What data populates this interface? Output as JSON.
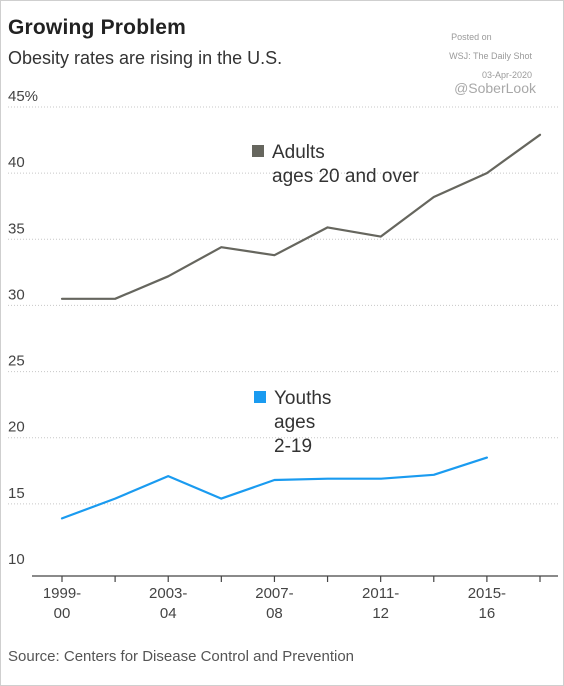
{
  "header": {
    "title": "Growing Problem",
    "subtitle": "Obesity rates are rising in the U.S."
  },
  "watermark": {
    "posted_line1": "Posted on",
    "posted_line2": "WSJ: The Daily Shot",
    "posted_line3": "03-Apr-2020",
    "handle": "@SoberLook"
  },
  "footer": {
    "source": "Source: Centers for Disease Control and Prevention"
  },
  "chart_data": {
    "type": "line",
    "title": "Growing Problem",
    "subtitle": "Obesity rates are rising in the U.S.",
    "y_tick_labels": [
      "45%",
      "40",
      "35",
      "30",
      "25",
      "20",
      "15",
      "10"
    ],
    "y_ticks": [
      45,
      40,
      35,
      30,
      25,
      20,
      15,
      10
    ],
    "ylim": [
      10,
      45
    ],
    "x_tick_labels": [
      {
        "line1": "1999-",
        "line2": "00"
      },
      {
        "line1": "2003-",
        "line2": "04"
      },
      {
        "line1": "2007-",
        "line2": "08"
      },
      {
        "line1": "2011-",
        "line2": "12"
      },
      {
        "line1": "2015-",
        "line2": "16"
      }
    ],
    "x": [
      "1999-00",
      "2001-02",
      "2003-04",
      "2005-06",
      "2007-08",
      "2009-10",
      "2011-12",
      "2013-14",
      "2015-16",
      "2017-18"
    ],
    "grid": "horizontal dotted",
    "series": [
      {
        "name_line1": "Adults",
        "name_line2": "ages 20 and over",
        "color": "#66665e",
        "values": [
          30.5,
          30.5,
          32.2,
          34.4,
          33.8,
          35.9,
          35.2,
          38.2,
          40.0,
          42.9
        ]
      },
      {
        "name_line1": "Youths",
        "name_line2": "ages",
        "name_line3": "2-19",
        "color": "#1a9bf0",
        "values": [
          13.9,
          15.4,
          17.1,
          15.4,
          16.8,
          16.9,
          16.9,
          17.2,
          18.5,
          null
        ]
      }
    ]
  }
}
